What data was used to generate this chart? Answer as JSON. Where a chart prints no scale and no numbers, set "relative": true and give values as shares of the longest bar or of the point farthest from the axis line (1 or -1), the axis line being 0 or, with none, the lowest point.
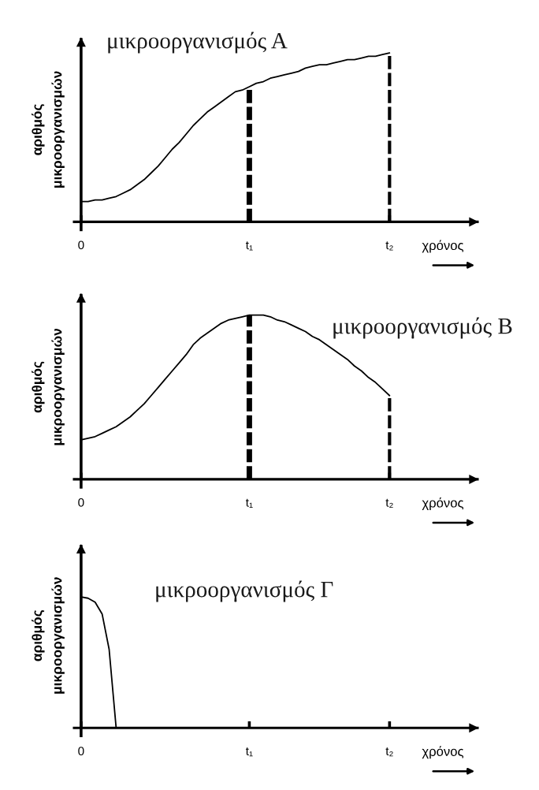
{
  "chart_data": [
    {
      "type": "line",
      "title": "μικροοργανισμός Α",
      "xlabel": "χρόνος",
      "ylabel": "αριθμός μικροοργανισμών",
      "relative": true,
      "categories": [
        "0",
        null,
        null,
        null,
        null,
        null,
        null,
        null,
        null,
        null,
        null,
        null,
        null,
        null,
        null,
        null,
        null,
        null,
        null,
        null,
        null,
        null,
        null,
        null,
        "t₁",
        null,
        null,
        null,
        null,
        null,
        null,
        null,
        null,
        null,
        null,
        null,
        null,
        null,
        null,
        null,
        null,
        null,
        null,
        null,
        "t₂"
      ],
      "series": [
        {
          "color": "#000000",
          "values": [
            0.12,
            0.12,
            0.13,
            0.13,
            0.14,
            0.15,
            0.17,
            0.19,
            0.22,
            0.25,
            0.29,
            0.33,
            0.38,
            0.43,
            0.47,
            0.52,
            0.57,
            0.61,
            0.65,
            0.68,
            0.71,
            0.74,
            0.77,
            0.78,
            0.8,
            0.82,
            0.83,
            0.85,
            0.86,
            0.87,
            0.88,
            0.89,
            0.91,
            0.92,
            0.93,
            0.93,
            0.94,
            0.95,
            0.96,
            0.96,
            0.97,
            0.98,
            0.98,
            0.99,
            1
          ]
        }
      ],
      "ref_lines": [
        {
          "axis": "x",
          "value": "t₁",
          "line_style": "dashed"
        },
        {
          "axis": "x",
          "value": "t₂",
          "line_style": "dashed"
        }
      ]
    },
    {
      "type": "line",
      "title": "μικροοργανισμός Β",
      "xlabel": "χρόνος",
      "ylabel": "αριθμός μικροοργανισμών",
      "relative": true,
      "categories": [
        "0",
        null,
        null,
        null,
        null,
        null,
        null,
        null,
        null,
        null,
        null,
        null,
        null,
        null,
        null,
        null,
        null,
        null,
        null,
        null,
        null,
        null,
        null,
        null,
        "t₁",
        null,
        null,
        null,
        null,
        null,
        null,
        null,
        null,
        null,
        null,
        null,
        null,
        null,
        null,
        null,
        null,
        null,
        null,
        null,
        "t₂"
      ],
      "series": [
        {
          "color": "#000000",
          "values": [
            0.24,
            0.25,
            0.26,
            0.28,
            0.3,
            0.32,
            0.35,
            0.38,
            0.42,
            0.46,
            0.51,
            0.56,
            0.61,
            0.66,
            0.71,
            0.76,
            0.82,
            0.86,
            0.89,
            0.92,
            0.95,
            0.97,
            0.98,
            0.99,
            1,
            1,
            1,
            0.99,
            0.97,
            0.96,
            0.94,
            0.92,
            0.9,
            0.87,
            0.85,
            0.82,
            0.79,
            0.76,
            0.73,
            0.69,
            0.66,
            0.62,
            0.59,
            0.55,
            0.51
          ]
        }
      ],
      "ref_lines": [
        {
          "axis": "x",
          "value": "t₁",
          "line_style": "dashed"
        },
        {
          "axis": "x",
          "value": "t₂",
          "line_style": "dashed"
        }
      ]
    },
    {
      "type": "line",
      "title": "μικροοργανισμός Γ",
      "xlabel": "χρόνος",
      "ylabel": "αριθμός μικροοργανισμών",
      "relative": true,
      "categories": [
        "0",
        null,
        null,
        null,
        null,
        null,
        null,
        null,
        null,
        null,
        null,
        null,
        null,
        null,
        null,
        null,
        null,
        null,
        null,
        null,
        null,
        null,
        null,
        null,
        "t₁",
        null,
        null,
        null,
        null,
        null,
        null,
        null,
        null,
        null,
        null,
        null,
        null,
        null,
        null,
        null,
        null,
        null,
        null,
        null,
        "t₂"
      ],
      "series": [
        {
          "color": "#000000",
          "values": [
            1,
            0.99,
            0.96,
            0.87,
            0.6,
            0,
            null,
            null,
            null,
            null,
            null,
            null,
            null,
            null,
            null,
            null,
            null,
            null,
            null,
            null,
            null,
            null,
            null,
            null,
            null,
            null,
            null,
            null,
            null,
            null,
            null,
            null,
            null,
            null,
            null,
            null,
            null,
            null,
            null,
            null,
            null,
            null,
            null,
            null,
            null
          ]
        }
      ]
    }
  ]
}
